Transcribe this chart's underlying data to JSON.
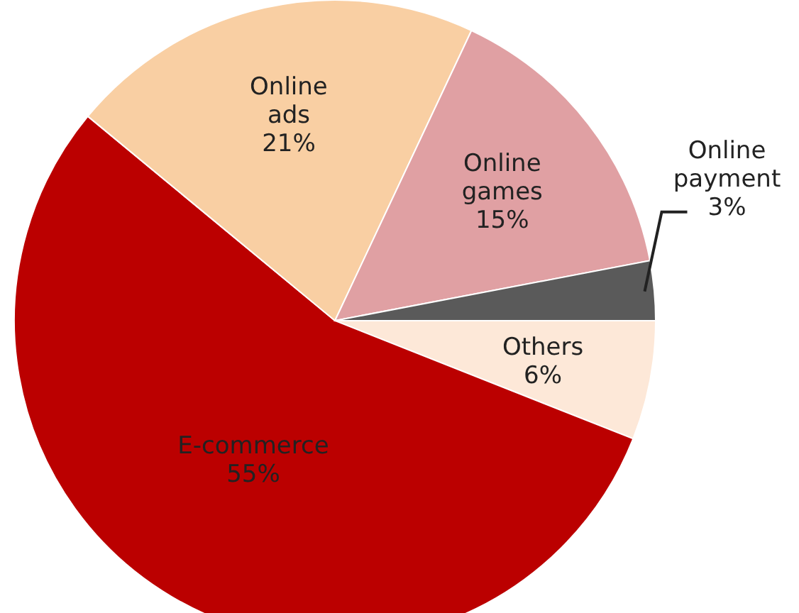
{
  "chart_data": {
    "type": "pie",
    "categories": [
      "Others",
      "E-commerce",
      "Online ads",
      "Online games",
      "Online payment"
    ],
    "values": [
      6,
      55,
      21,
      15,
      3
    ],
    "value_labels": [
      "6%",
      "55%",
      "21%",
      "15%",
      "3%"
    ],
    "colors": [
      "#fde8d8",
      "#bb0000",
      "#f9cfa3",
      "#e0a0a3",
      "#5a5a5a"
    ]
  }
}
